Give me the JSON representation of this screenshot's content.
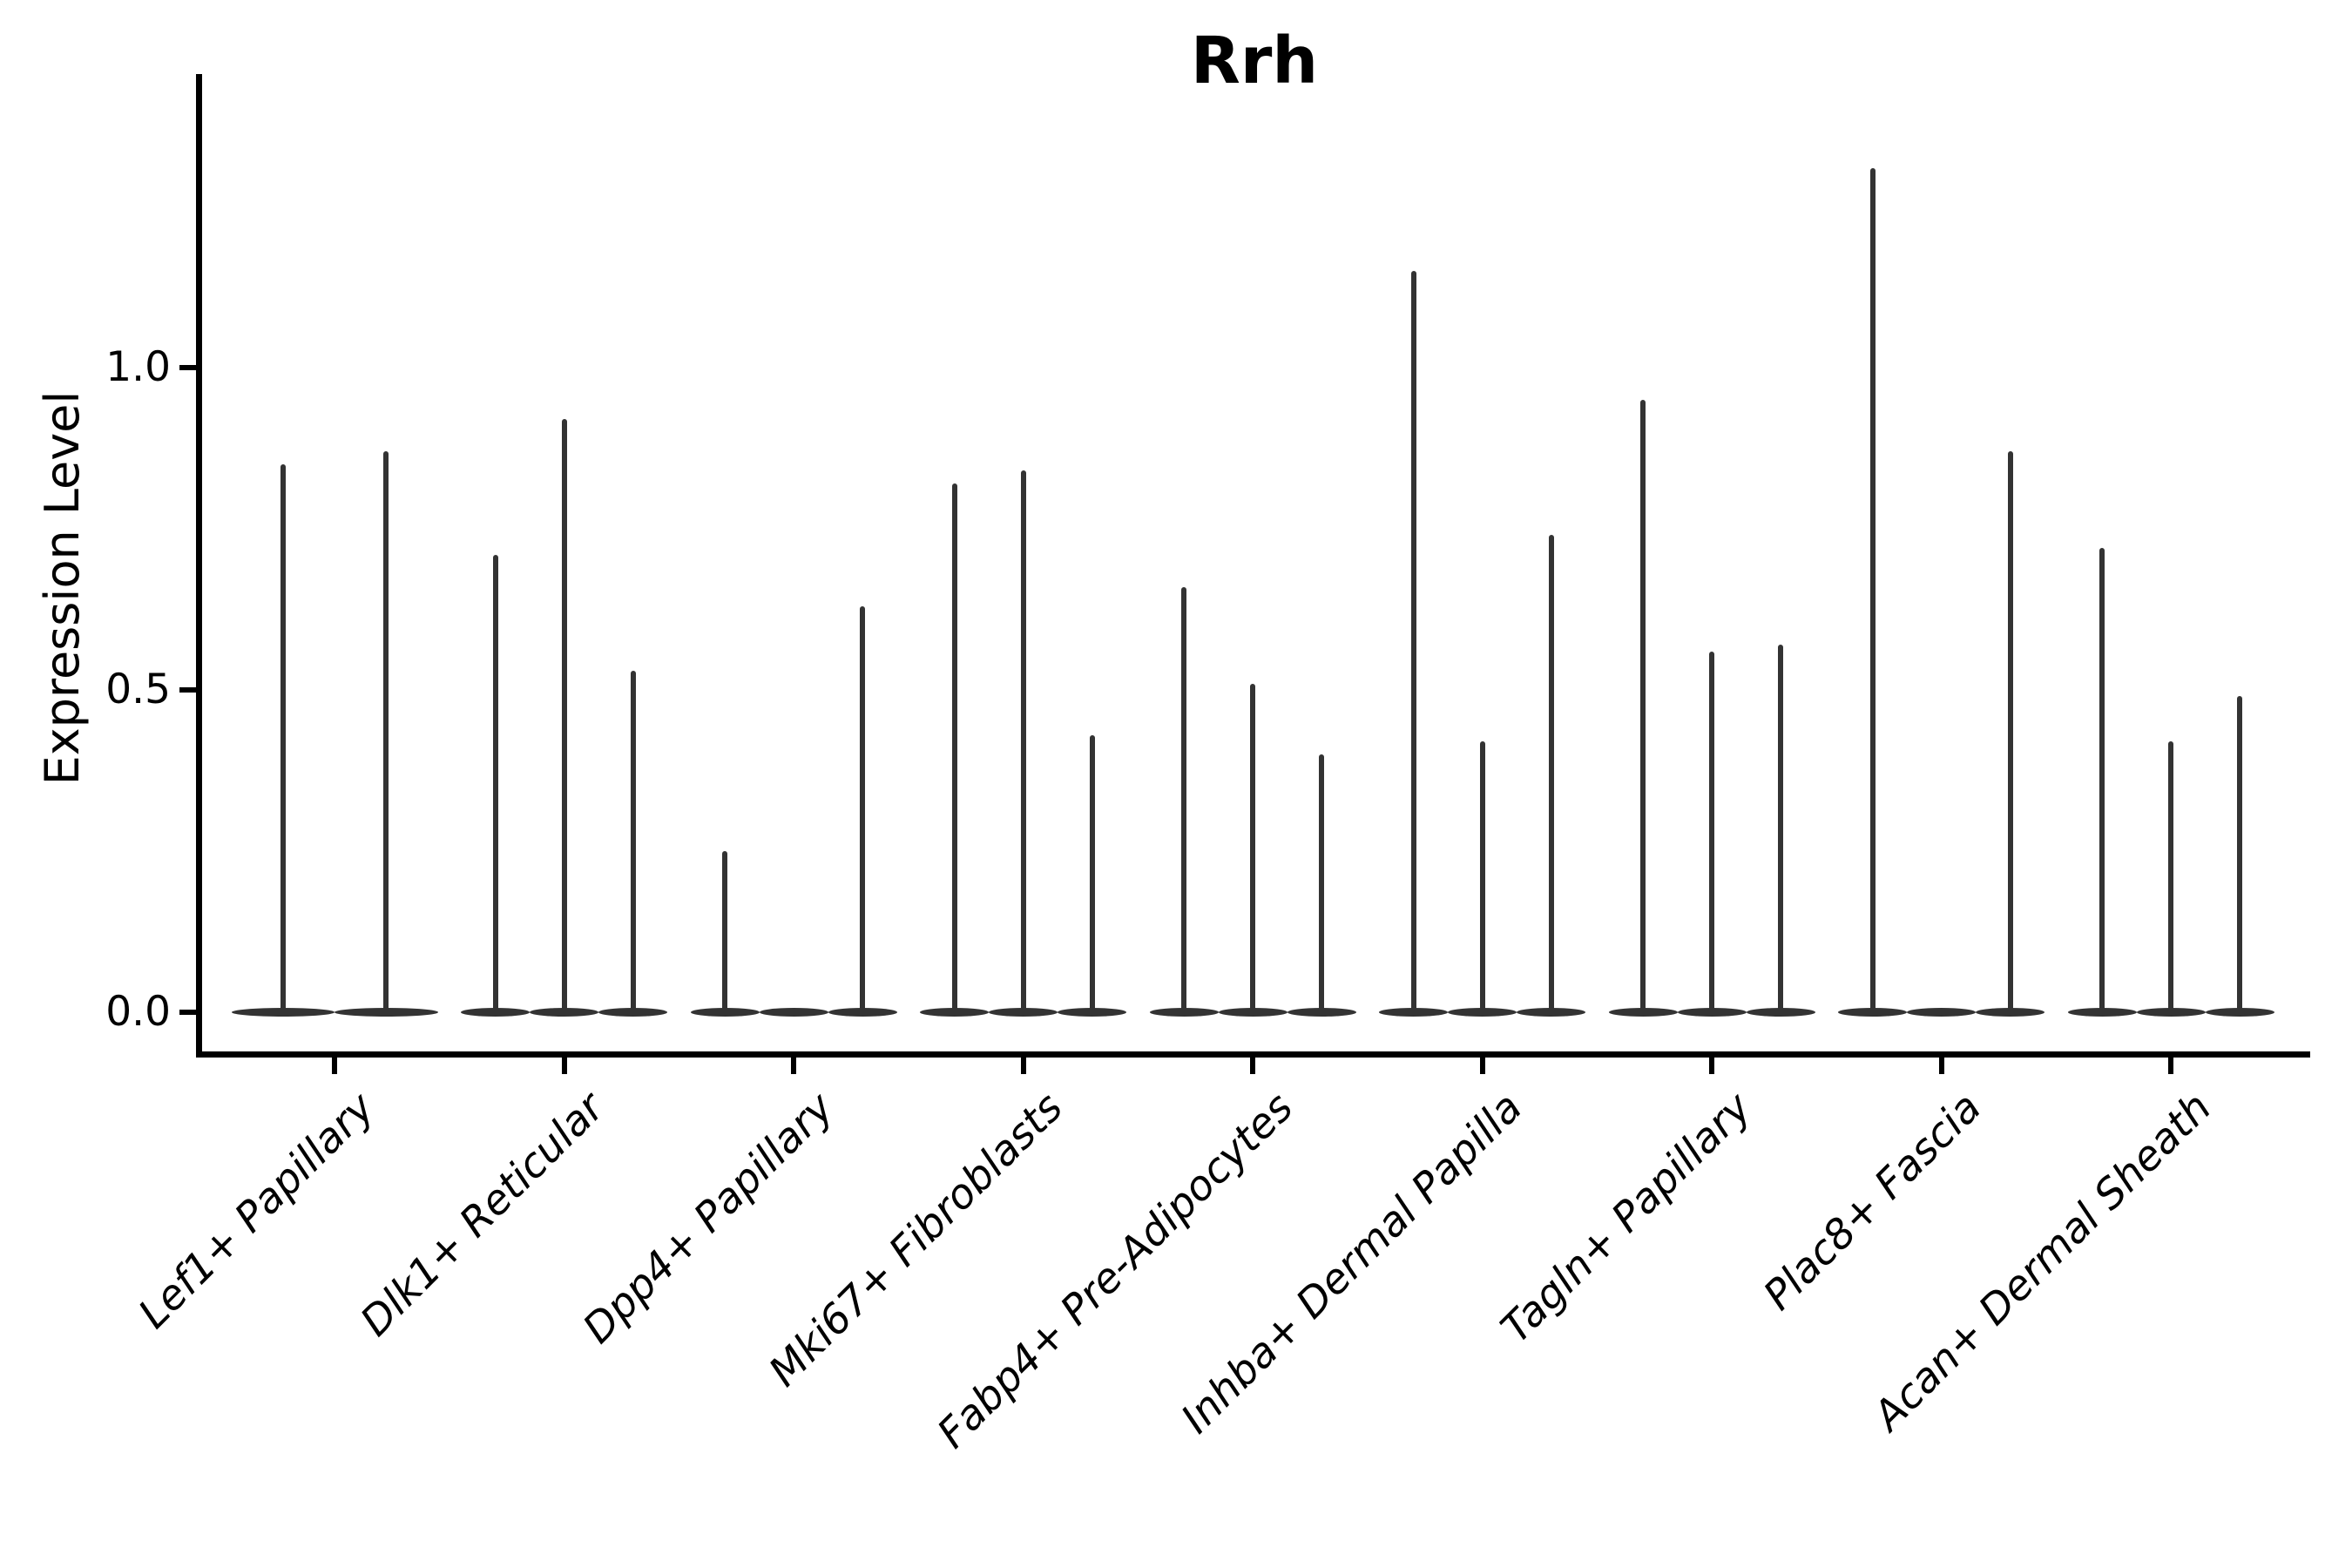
{
  "title": "Rrh",
  "axes": {
    "ylabel": "Expression Level",
    "ytick_labels": [
      "0.0",
      "0.5",
      "1.0"
    ]
  },
  "chart_data": {
    "type": "violin",
    "title": "Rrh",
    "xlabel": "",
    "ylabel": "Expression Level",
    "ylim": [
      -0.06,
      1.45
    ],
    "yticks": [
      0.0,
      0.5,
      1.0
    ],
    "ytick_labels": [
      "0.0",
      "0.5",
      "1.0"
    ],
    "grid": false,
    "legend": "none",
    "x_label_rotation": 45,
    "categories": [
      "Lef1+ Papillary",
      "Dlk1+ Reticular",
      "Dpp4+ Papillary",
      "Mki67+ Fibroblasts",
      "Fabp4+ Pre-Adipocytes",
      "Inhba+ Dermal Papilla",
      "Tagln+ Papillary",
      "Plac8+ Fascia",
      "Acan+ Dermal Sheath"
    ],
    "groups": [
      {
        "label": "Lef1+ Papillary",
        "violin_maxima": [
          0.85,
          0.87
        ]
      },
      {
        "label": "Dlk1+ Reticular",
        "violin_maxima": [
          0.71,
          0.92,
          0.53
        ]
      },
      {
        "label": "Dpp4+ Papillary",
        "violin_maxima": [
          0.25,
          0.0,
          0.63
        ]
      },
      {
        "label": "Mki67+ Fibroblasts",
        "violin_maxima": [
          0.82,
          0.84,
          0.43
        ]
      },
      {
        "label": "Fabp4+ Pre-Adipocytes",
        "violin_maxima": [
          0.66,
          0.51,
          0.4
        ]
      },
      {
        "label": "Inhba+ Dermal Papilla",
        "violin_maxima": [
          1.15,
          0.42,
          0.74
        ]
      },
      {
        "label": "Tagln+ Papillary",
        "violin_maxima": [
          0.95,
          0.56,
          0.57
        ]
      },
      {
        "label": "Plac8+ Fascia",
        "violin_maxima": [
          1.31,
          0.0,
          0.87
        ]
      },
      {
        "label": "Acan+ Dermal Sheath",
        "violin_maxima": [
          0.72,
          0.42,
          0.49
        ]
      }
    ],
    "colors": {
      "violin": "#333333",
      "spine": "#000000",
      "text": "#000000",
      "background": "#ffffff"
    }
  }
}
